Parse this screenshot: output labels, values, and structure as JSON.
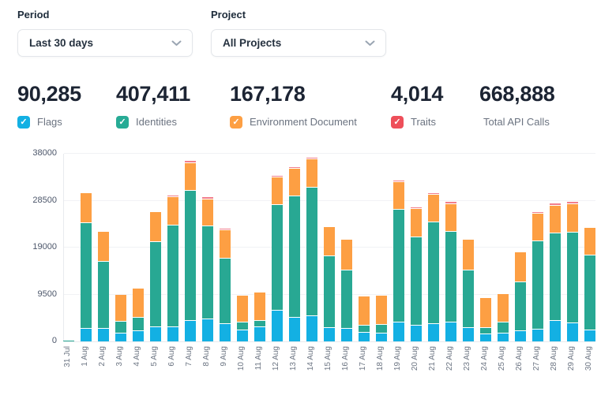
{
  "controls": {
    "period": {
      "label": "Period",
      "value": "Last 30 days"
    },
    "project": {
      "label": "Project",
      "value": "All Projects"
    }
  },
  "stats": [
    {
      "value": "90,285",
      "label": "Flags",
      "checkbox_color": "#13b0e3",
      "checked": true
    },
    {
      "value": "407,411",
      "label": "Identities",
      "checkbox_color": "#27ab95",
      "checked": true
    },
    {
      "value": "167,178",
      "label": "Environment Document",
      "checkbox_color": "#fd9f43",
      "checked": true
    },
    {
      "value": "4,014",
      "label": "Traits",
      "checkbox_color": "#ee4f5a",
      "checked": true
    },
    {
      "value": "668,888",
      "label": "Total API Calls",
      "checkbox_color": null,
      "checked": null
    }
  ],
  "icons": {
    "dropdown": "chevron-down",
    "checkbox_mark": "✓"
  },
  "chart_data": {
    "type": "bar",
    "stacked": true,
    "title": "",
    "xlabel": "",
    "ylabel": "",
    "ylim": [
      0,
      38000
    ],
    "yticks": [
      0,
      9500,
      19000,
      28500,
      38000
    ],
    "grid": true,
    "legend_position": "none (series colors shown by stat checkboxes above)",
    "categories": [
      "31 Jul",
      "1 Aug",
      "2 Aug",
      "3 Aug",
      "4 Aug",
      "5 Aug",
      "6 Aug",
      "7 Aug",
      "8 Aug",
      "9 Aug",
      "10 Aug",
      "11 Aug",
      "12 Aug",
      "13 Aug",
      "14 Aug",
      "15 Aug",
      "16 Aug",
      "17 Aug",
      "18 Aug",
      "19 Aug",
      "20 Aug",
      "21 Aug",
      "22 Aug",
      "23 Aug",
      "24 Aug",
      "25 Aug",
      "26 Aug",
      "27 Aug",
      "28 Aug",
      "29 Aug",
      "30 Aug"
    ],
    "series": [
      {
        "name": "Flags",
        "color": "#13b0e3",
        "values": [
          30,
          2500,
          2550,
          1600,
          2000,
          2950,
          2800,
          4100,
          4400,
          3550,
          2250,
          2800,
          6250,
          4850,
          5100,
          2650,
          2550,
          1750,
          1650,
          3800,
          3200,
          3550,
          3850,
          2700,
          1500,
          1550,
          2150,
          2400,
          4100,
          3750,
          2300
        ]
      },
      {
        "name": "Identities",
        "color": "#28a893",
        "values": [
          220,
          21300,
          13350,
          2250,
          2500,
          17050,
          20450,
          26200,
          18650,
          13150,
          1500,
          1050,
          21300,
          24400,
          25850,
          14400,
          11600,
          1250,
          1600,
          22700,
          17700,
          20400,
          18250,
          11450,
          1150,
          2150,
          9750,
          17700,
          17600,
          18200,
          15050
        ]
      },
      {
        "name": "Environment Document",
        "color": "#fd9f43",
        "values": [
          0,
          5900,
          5900,
          5300,
          5800,
          5900,
          5650,
          5400,
          5300,
          5650,
          5300,
          5650,
          5400,
          5500,
          5600,
          5700,
          6000,
          5700,
          5750,
          5500,
          5600,
          5500,
          5450,
          6000,
          5950,
          5650,
          5950,
          5450,
          5500,
          5650,
          5450
        ]
      },
      {
        "name": "Traits",
        "color": "#f27e8b",
        "values": [
          0,
          60,
          40,
          10,
          20,
          60,
          120,
          320,
          280,
          200,
          10,
          10,
          90,
          220,
          160,
          60,
          40,
          10,
          10,
          220,
          80,
          120,
          260,
          40,
          10,
          10,
          40,
          120,
          380,
          280,
          60
        ]
      }
    ]
  }
}
